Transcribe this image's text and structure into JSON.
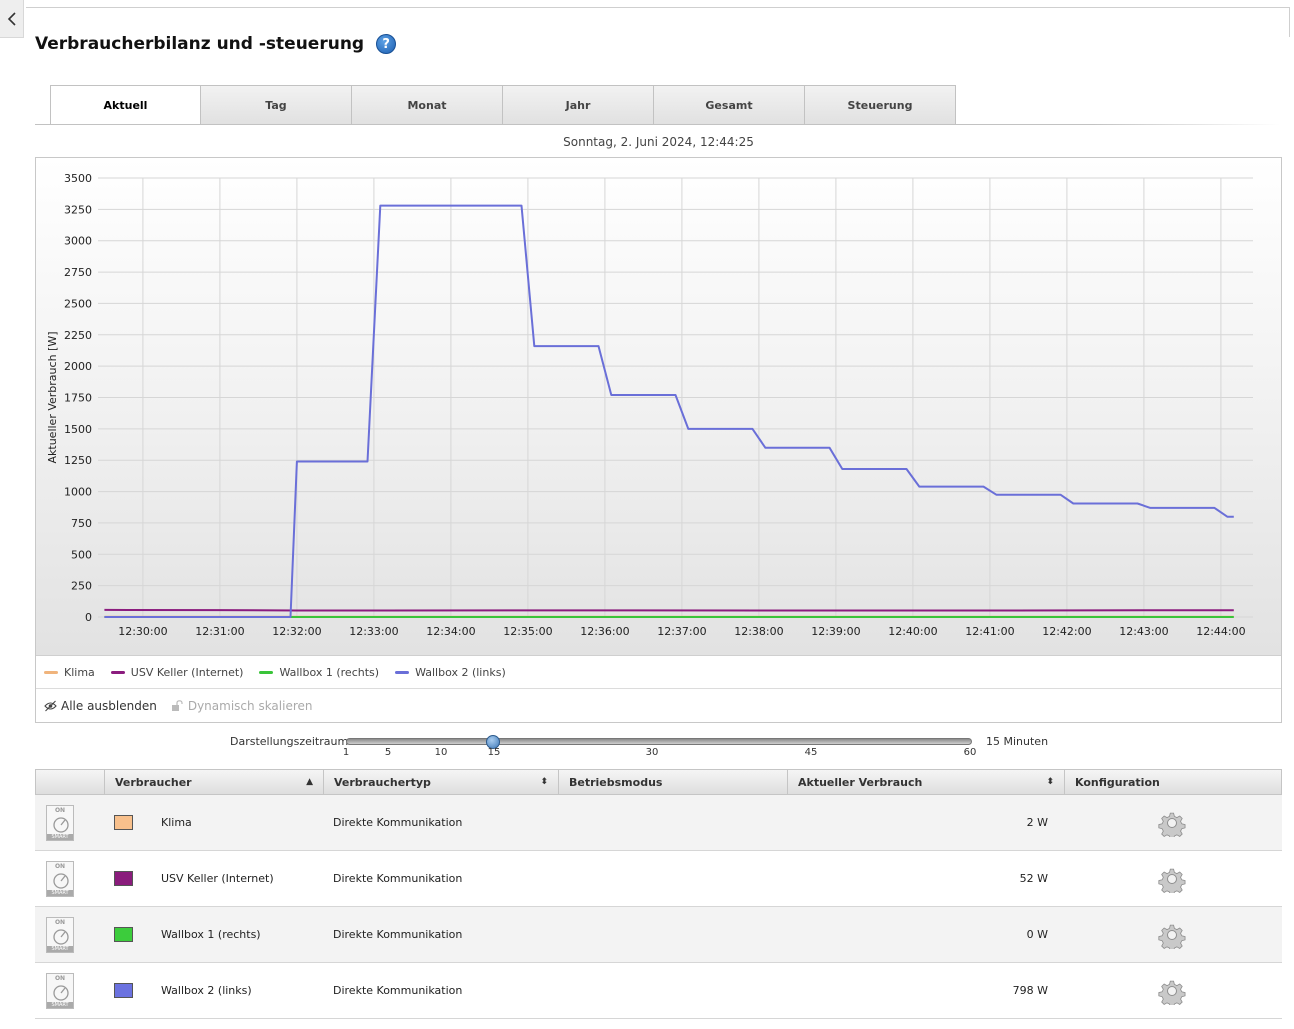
{
  "page": {
    "title": "Verbraucherbilanz und -steuerung",
    "help_icon": "question-mark-icon",
    "back_icon": "chevron-left-icon"
  },
  "tabs": [
    {
      "label": "Aktuell",
      "active": true
    },
    {
      "label": "Tag",
      "active": false
    },
    {
      "label": "Monat",
      "active": false
    },
    {
      "label": "Jahr",
      "active": false
    },
    {
      "label": "Gesamt",
      "active": false
    },
    {
      "label": "Steuerung",
      "active": false
    }
  ],
  "date_text": "Sonntag, 2. Juni 2024, 12:44:25",
  "chart_data": {
    "type": "line",
    "ylabel": "Aktueller Verbrauch [W]",
    "ylim": [
      0,
      3500
    ],
    "yticks": [
      0,
      250,
      500,
      750,
      1000,
      1250,
      1500,
      1750,
      2000,
      2250,
      2500,
      2750,
      3000,
      3250,
      3500
    ],
    "xlim": [
      "12:29:25",
      "12:44:25"
    ],
    "xticks": [
      "12:30:00",
      "12:31:00",
      "12:32:00",
      "12:33:00",
      "12:34:00",
      "12:35:00",
      "12:36:00",
      "12:37:00",
      "12:38:00",
      "12:39:00",
      "12:40:00",
      "12:41:00",
      "12:42:00",
      "12:43:00",
      "12:44:00"
    ],
    "grid": true,
    "series": [
      {
        "name": "Klima",
        "color": "#f0b47c",
        "x": [
          "12:29:30",
          "12:44:10"
        ],
        "y": [
          2,
          2
        ]
      },
      {
        "name": "USV Keller (Internet)",
        "color": "#8b1c7e",
        "x": [
          "12:29:30",
          "12:31:00",
          "12:32:00",
          "12:36:00",
          "12:41:00",
          "12:44:10"
        ],
        "y": [
          57,
          55,
          52,
          53,
          52,
          54
        ]
      },
      {
        "name": "Wallbox 1 (rechts)",
        "color": "#3ac43a",
        "x": [
          "12:29:30",
          "12:44:10"
        ],
        "y": [
          0,
          0
        ]
      },
      {
        "name": "Wallbox 2 (links)",
        "color": "#6a6fd8",
        "x": [
          "12:29:30",
          "12:31:55",
          "12:32:00",
          "12:32:55",
          "12:33:05",
          "12:34:55",
          "12:35:05",
          "12:35:55",
          "12:36:05",
          "12:36:55",
          "12:37:05",
          "12:37:55",
          "12:38:05",
          "12:38:55",
          "12:39:05",
          "12:39:55",
          "12:40:05",
          "12:40:55",
          "12:41:05",
          "12:41:55",
          "12:42:05",
          "12:42:55",
          "12:43:05",
          "12:43:55",
          "12:44:05",
          "12:44:10"
        ],
        "y": [
          0,
          0,
          1240,
          1240,
          3280,
          3280,
          2160,
          2160,
          1770,
          1770,
          1500,
          1500,
          1350,
          1350,
          1180,
          1180,
          1040,
          1040,
          975,
          975,
          905,
          905,
          870,
          870,
          800,
          800
        ]
      }
    ]
  },
  "legend": [
    {
      "label": "Klima",
      "color": "#f0b47c"
    },
    {
      "label": "USV Keller (Internet)",
      "color": "#8b1c7e"
    },
    {
      "label": "Wallbox 1 (rechts)",
      "color": "#3ac43a"
    },
    {
      "label": "Wallbox 2 (links)",
      "color": "#6a6fd8"
    }
  ],
  "controls": {
    "hide_all": "Alle ausblenden",
    "dynamic_scale": "Dynamisch skalieren"
  },
  "slider": {
    "label": "Darstellungszeitraum",
    "unit": "15 Minuten",
    "ticks": [
      "1",
      "5",
      "10",
      "15",
      "30",
      "45",
      "60"
    ],
    "value": 15
  },
  "table": {
    "headers": {
      "verbraucher": "Verbraucher",
      "typ": "Verbrauchertyp",
      "modus": "Betriebsmodus",
      "verbrauch": "Aktueller Verbrauch",
      "konfig": "Konfiguration"
    },
    "device_icon_top": "ON",
    "device_icon_bottom": "SMART",
    "rows": [
      {
        "name": "Klima",
        "color": "#f8c08c",
        "type": "Direkte Kommunikation",
        "mode": "",
        "consumption": "2 W"
      },
      {
        "name": "USV Keller (Internet)",
        "color": "#8a1c7c",
        "type": "Direkte Kommunikation",
        "mode": "",
        "consumption": "52 W"
      },
      {
        "name": "Wallbox 1 (rechts)",
        "color": "#3ccc3c",
        "type": "Direkte Kommunikation",
        "mode": "",
        "consumption": "0 W"
      },
      {
        "name": "Wallbox 2 (links)",
        "color": "#6b72e0",
        "type": "Direkte Kommunikation",
        "mode": "",
        "consumption": "798 W"
      }
    ]
  }
}
